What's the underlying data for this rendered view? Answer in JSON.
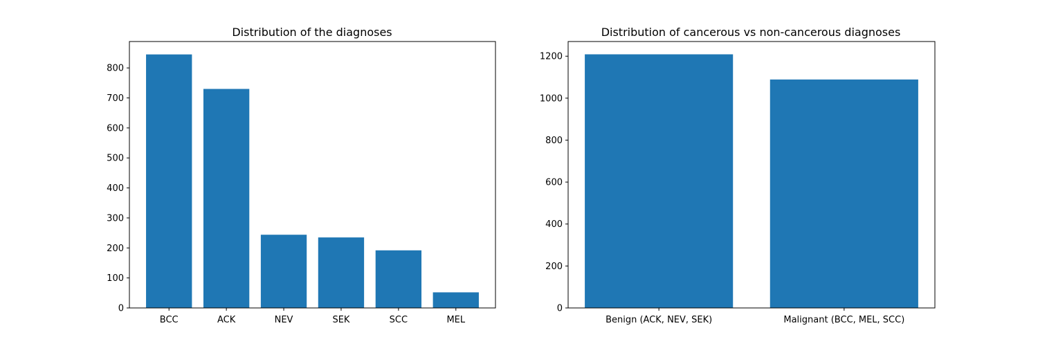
{
  "chart_data": [
    {
      "type": "bar",
      "title": "Distribution of the diagnoses",
      "xlabel": "",
      "ylabel": "",
      "categories": [
        "BCC",
        "ACK",
        "NEV",
        "SEK",
        "SCC",
        "MEL"
      ],
      "values": [
        845,
        730,
        244,
        235,
        192,
        52
      ],
      "ylim": [
        0,
        888
      ],
      "yticks": [
        0,
        100,
        200,
        300,
        400,
        500,
        600,
        700,
        800
      ],
      "color": "#1f77b4",
      "grid": false
    },
    {
      "type": "bar",
      "title": "Distribution of cancerous vs non-cancerous diagnoses",
      "xlabel": "",
      "ylabel": "",
      "categories": [
        "Benign (ACK, NEV, SEK)",
        "Malignant (BCC, MEL, SCC)"
      ],
      "values": [
        1209,
        1089
      ],
      "ylim": [
        0,
        1270
      ],
      "yticks": [
        0,
        200,
        400,
        600,
        800,
        1000,
        1200
      ],
      "color": "#1f77b4",
      "grid": false
    }
  ]
}
